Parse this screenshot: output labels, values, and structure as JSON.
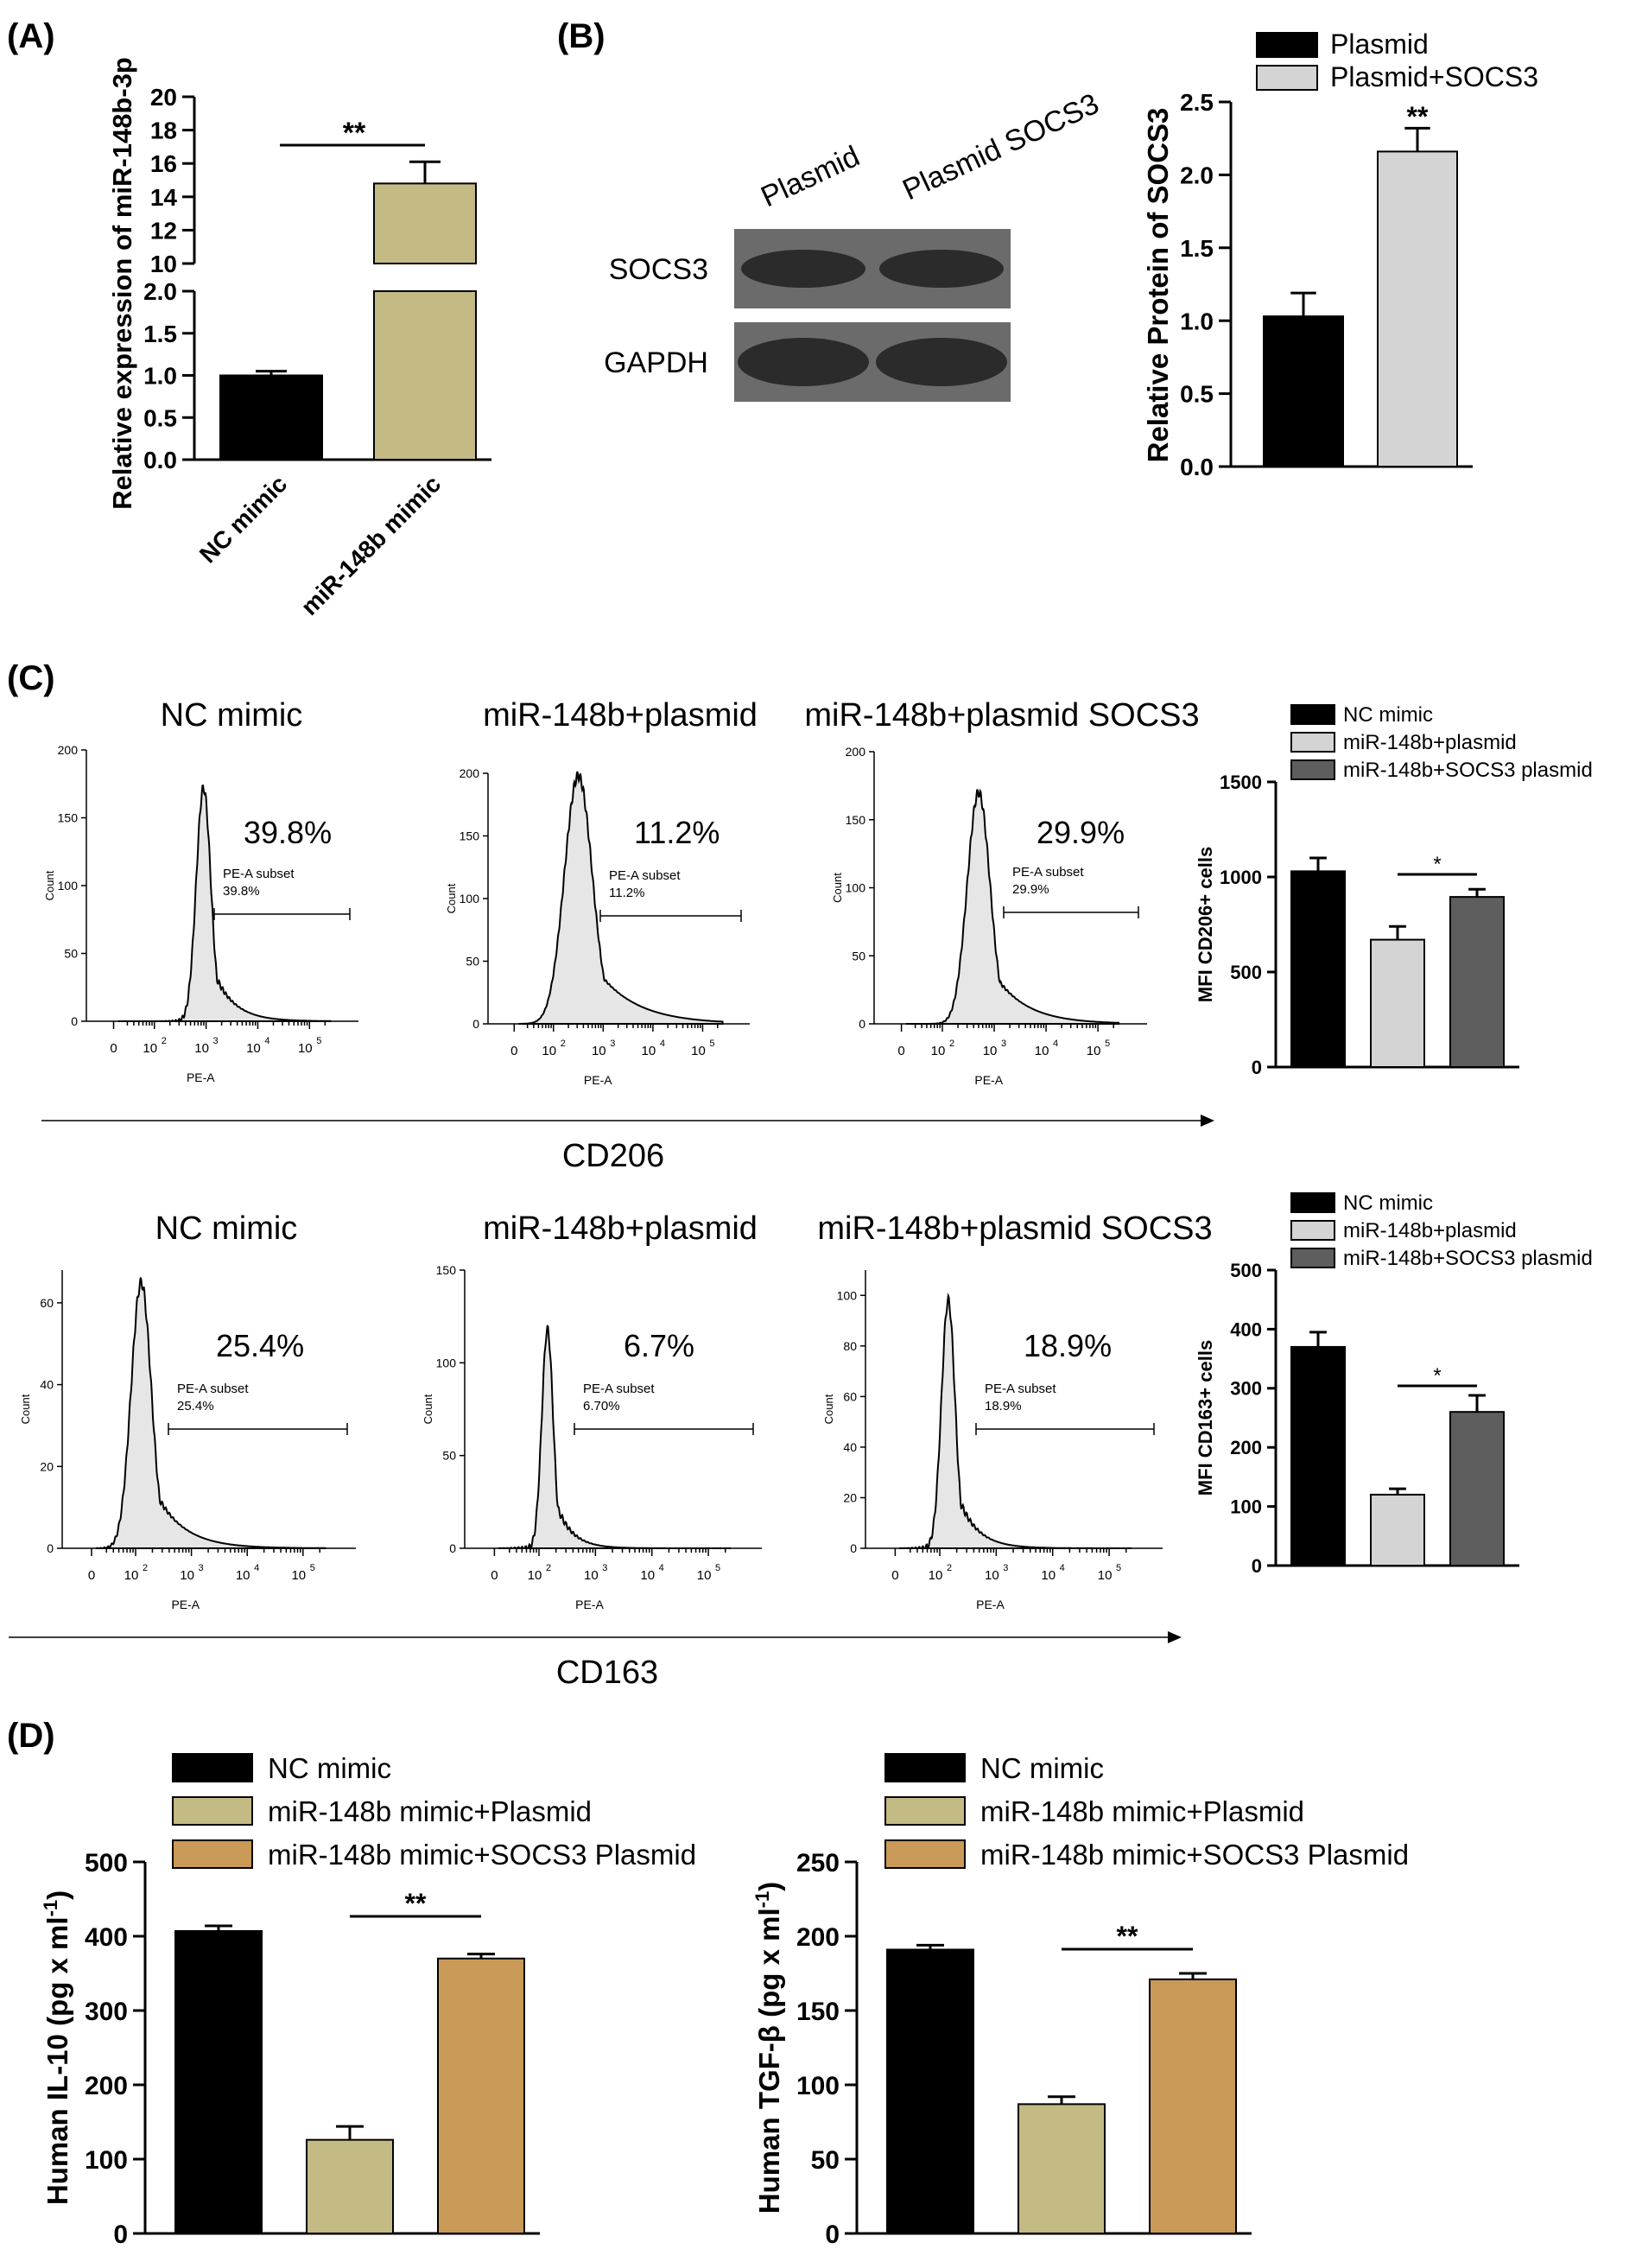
{
  "colors": {
    "black": "#000000",
    "light_gray": "#d4d4d4",
    "dark_gray": "#5e5e5e",
    "khaki": "#c4ba84",
    "tan": "#c99957",
    "histogram_fill": "#e6e6e6",
    "blot_band": "#2b2b2b",
    "blot_background": "#6b6b6b"
  },
  "panels": {
    "A": {
      "label": "(A)",
      "chart_data": {
        "type": "bar",
        "categories": [
          "NC mimic",
          "miR-148b mimic"
        ],
        "values": [
          1.0,
          14.8
        ],
        "errors": [
          0.05,
          1.3
        ],
        "colors": [
          "#000000",
          "#c4ba84"
        ],
        "ylabel": "Relative expression of miR-148b-3p",
        "axis_break": {
          "lower": [
            0,
            2.0
          ],
          "upper": [
            10,
            20
          ]
        },
        "y_ticks_lower": [
          "0.0",
          "0.5",
          "1.0",
          "1.5",
          "2.0"
        ],
        "y_ticks_upper": [
          "10",
          "12",
          "14",
          "16",
          "18",
          "20"
        ],
        "significance": "**"
      }
    },
    "B": {
      "label": "(B)",
      "blot": {
        "lanes": [
          "Plasmid",
          "Plasmid SOCS3"
        ],
        "rows": [
          "SOCS3",
          "GAPDH"
        ]
      },
      "chart_data": {
        "type": "bar",
        "categories": [
          "Plasmid",
          "Plasmid+SOCS3"
        ],
        "values": [
          1.03,
          2.16
        ],
        "errors": [
          0.16,
          0.16
        ],
        "colors": [
          "#000000",
          "#d4d4d4"
        ],
        "ylabel": "Relative  Protein of SOCS3",
        "ylim": [
          0,
          2.5
        ],
        "y_ticks": [
          "0.0",
          "0.5",
          "1.0",
          "1.5",
          "2.0",
          "2.5"
        ],
        "legend": [
          "Plasmid",
          "Plasmid+SOCS3"
        ],
        "significance": "**"
      }
    },
    "C": {
      "label": "(C)",
      "flow_rows": [
        {
          "marker": "CD206",
          "plots": [
            {
              "title": "NC mimic",
              "pct_big": "39.8%",
              "subset_name": "PE-A subset",
              "subset_pct": "39.8%",
              "ymax": 200,
              "y_ticks": [
                "0",
                "50",
                "100",
                "150",
                "200"
              ],
              "peak_log": 2.95,
              "peak_height": 172,
              "sigma": 0.14
            },
            {
              "title": "miR-148b+plasmid",
              "pct_big": "11.2%",
              "subset_name": "PE-A subset",
              "subset_pct": "11.2%",
              "ymax": 200,
              "y_ticks": [
                "0",
                "50",
                "100",
                "150",
                "200"
              ],
              "peak_log": 2.5,
              "peak_height": 198,
              "sigma": 0.28
            },
            {
              "title": "miR-148b+plasmid SOCS3",
              "pct_big": "29.9%",
              "subset_name": "PE-A subset",
              "subset_pct": "29.9%",
              "ymax": 200,
              "y_ticks": [
                "0",
                "50",
                "100",
                "150",
                "200"
              ],
              "peak_log": 2.7,
              "peak_height": 170,
              "sigma": 0.22
            }
          ],
          "x_label": "PE-A",
          "y_label": "Count",
          "chart_data": {
            "type": "bar",
            "categories": [
              "NC mimic",
              "miR-148b+plasmid",
              "miR-148b+SOCS3 plasmid"
            ],
            "values": [
              1030,
              670,
              895
            ],
            "errors": [
              70,
              70,
              40
            ],
            "colors": [
              "#000000",
              "#d4d4d4",
              "#5e5e5e"
            ],
            "ylabel": "MFI CD206+ cells",
            "ylim": [
              0,
              1500
            ],
            "y_ticks": [
              "0",
              "500",
              "1000",
              "1500"
            ],
            "legend": [
              "NC mimic",
              "miR-148b+plasmid",
              "miR-148b+SOCS3 plasmid"
            ],
            "significance": "*"
          }
        },
        {
          "marker": "CD163",
          "plots": [
            {
              "title": "NC mimic",
              "pct_big": "25.4%",
              "subset_name": "PE-A subset",
              "subset_pct": "25.4%",
              "ymax": 68,
              "y_ticks": [
                "0",
                "20",
                "40",
                "60"
              ],
              "peak_log": 2.1,
              "peak_height": 65,
              "sigma": 0.18
            },
            {
              "title": "miR-148b+plasmid",
              "pct_big": "6.7%",
              "subset_name": "PE-A subset",
              "subset_pct": "6.70%",
              "ymax": 150,
              "y_ticks": [
                "0",
                "50",
                "100",
                "150"
              ],
              "peak_log": 2.15,
              "peak_height": 118,
              "sigma": 0.1
            },
            {
              "title": "miR-148b+plasmid SOCS3",
              "pct_big": "18.9%",
              "subset_name": "PE-A subset",
              "subset_pct": "18.9%",
              "ymax": 110,
              "y_ticks": [
                "0",
                "20",
                "40",
                "60",
                "80",
                "100"
              ],
              "peak_log": 2.15,
              "peak_height": 98,
              "sigma": 0.12
            }
          ],
          "x_label": "PE-A",
          "y_label": "Count",
          "chart_data": {
            "type": "bar",
            "categories": [
              "NC mimic",
              "miR-148b+plasmid",
              "miR-148b+SOCS3 plasmid"
            ],
            "values": [
              370,
              120,
              260
            ],
            "errors": [
              25,
              10,
              28
            ],
            "colors": [
              "#000000",
              "#d4d4d4",
              "#5e5e5e"
            ],
            "ylabel": "MFI CD163+ cells",
            "ylim": [
              0,
              500
            ],
            "y_ticks": [
              "0",
              "100",
              "200",
              "300",
              "400",
              "500"
            ],
            "legend": [
              "NC mimic",
              "miR-148b+plasmid",
              "miR-148b+SOCS3 plasmid"
            ],
            "significance": "*"
          }
        }
      ],
      "x_tick_labels": [
        "0",
        "10",
        "10",
        "10",
        "10"
      ],
      "x_tick_exponents": [
        "",
        "2",
        "3",
        "4",
        "5"
      ]
    },
    "D": {
      "label": "(D)",
      "charts": [
        {
          "chart_data": {
            "type": "bar",
            "categories": [
              "NC mimic",
              "miR-148b mimic+Plasmid",
              "miR-148b mimic+SOCS3 Plasmid"
            ],
            "values": [
              407,
              126,
              370
            ],
            "errors": [
              7,
              18,
              6
            ],
            "colors": [
              "#000000",
              "#c4ba84",
              "#c99957"
            ],
            "ylabel": "Human IL-10 (pg x ml",
            "ylabel_sup": "-1",
            "ylabel_end": ")",
            "ylim": [
              0,
              500
            ],
            "y_ticks": [
              "0",
              "100",
              "200",
              "300",
              "400",
              "500"
            ],
            "legend": [
              "NC mimic",
              "miR-148b mimic+Plasmid",
              "miR-148b mimic+SOCS3 Plasmid"
            ],
            "significance": "**"
          }
        },
        {
          "chart_data": {
            "type": "bar",
            "categories": [
              "NC mimic",
              "miR-148b mimic+Plasmid",
              "miR-148b mimic+SOCS3 Plasmid"
            ],
            "values": [
              191,
              87,
              171
            ],
            "errors": [
              3,
              5,
              4
            ],
            "colors": [
              "#000000",
              "#c4ba84",
              "#c99957"
            ],
            "ylabel": "Human TGF-β (pg x ml",
            "ylabel_sup": "-1",
            "ylabel_end": ")",
            "ylim": [
              0,
              250
            ],
            "y_ticks": [
              "0",
              "50",
              "100",
              "150",
              "200",
              "250"
            ],
            "legend": [
              "NC mimic",
              "miR-148b mimic+Plasmid",
              "miR-148b mimic+SOCS3 Plasmid"
            ],
            "significance": "**"
          }
        }
      ]
    }
  }
}
